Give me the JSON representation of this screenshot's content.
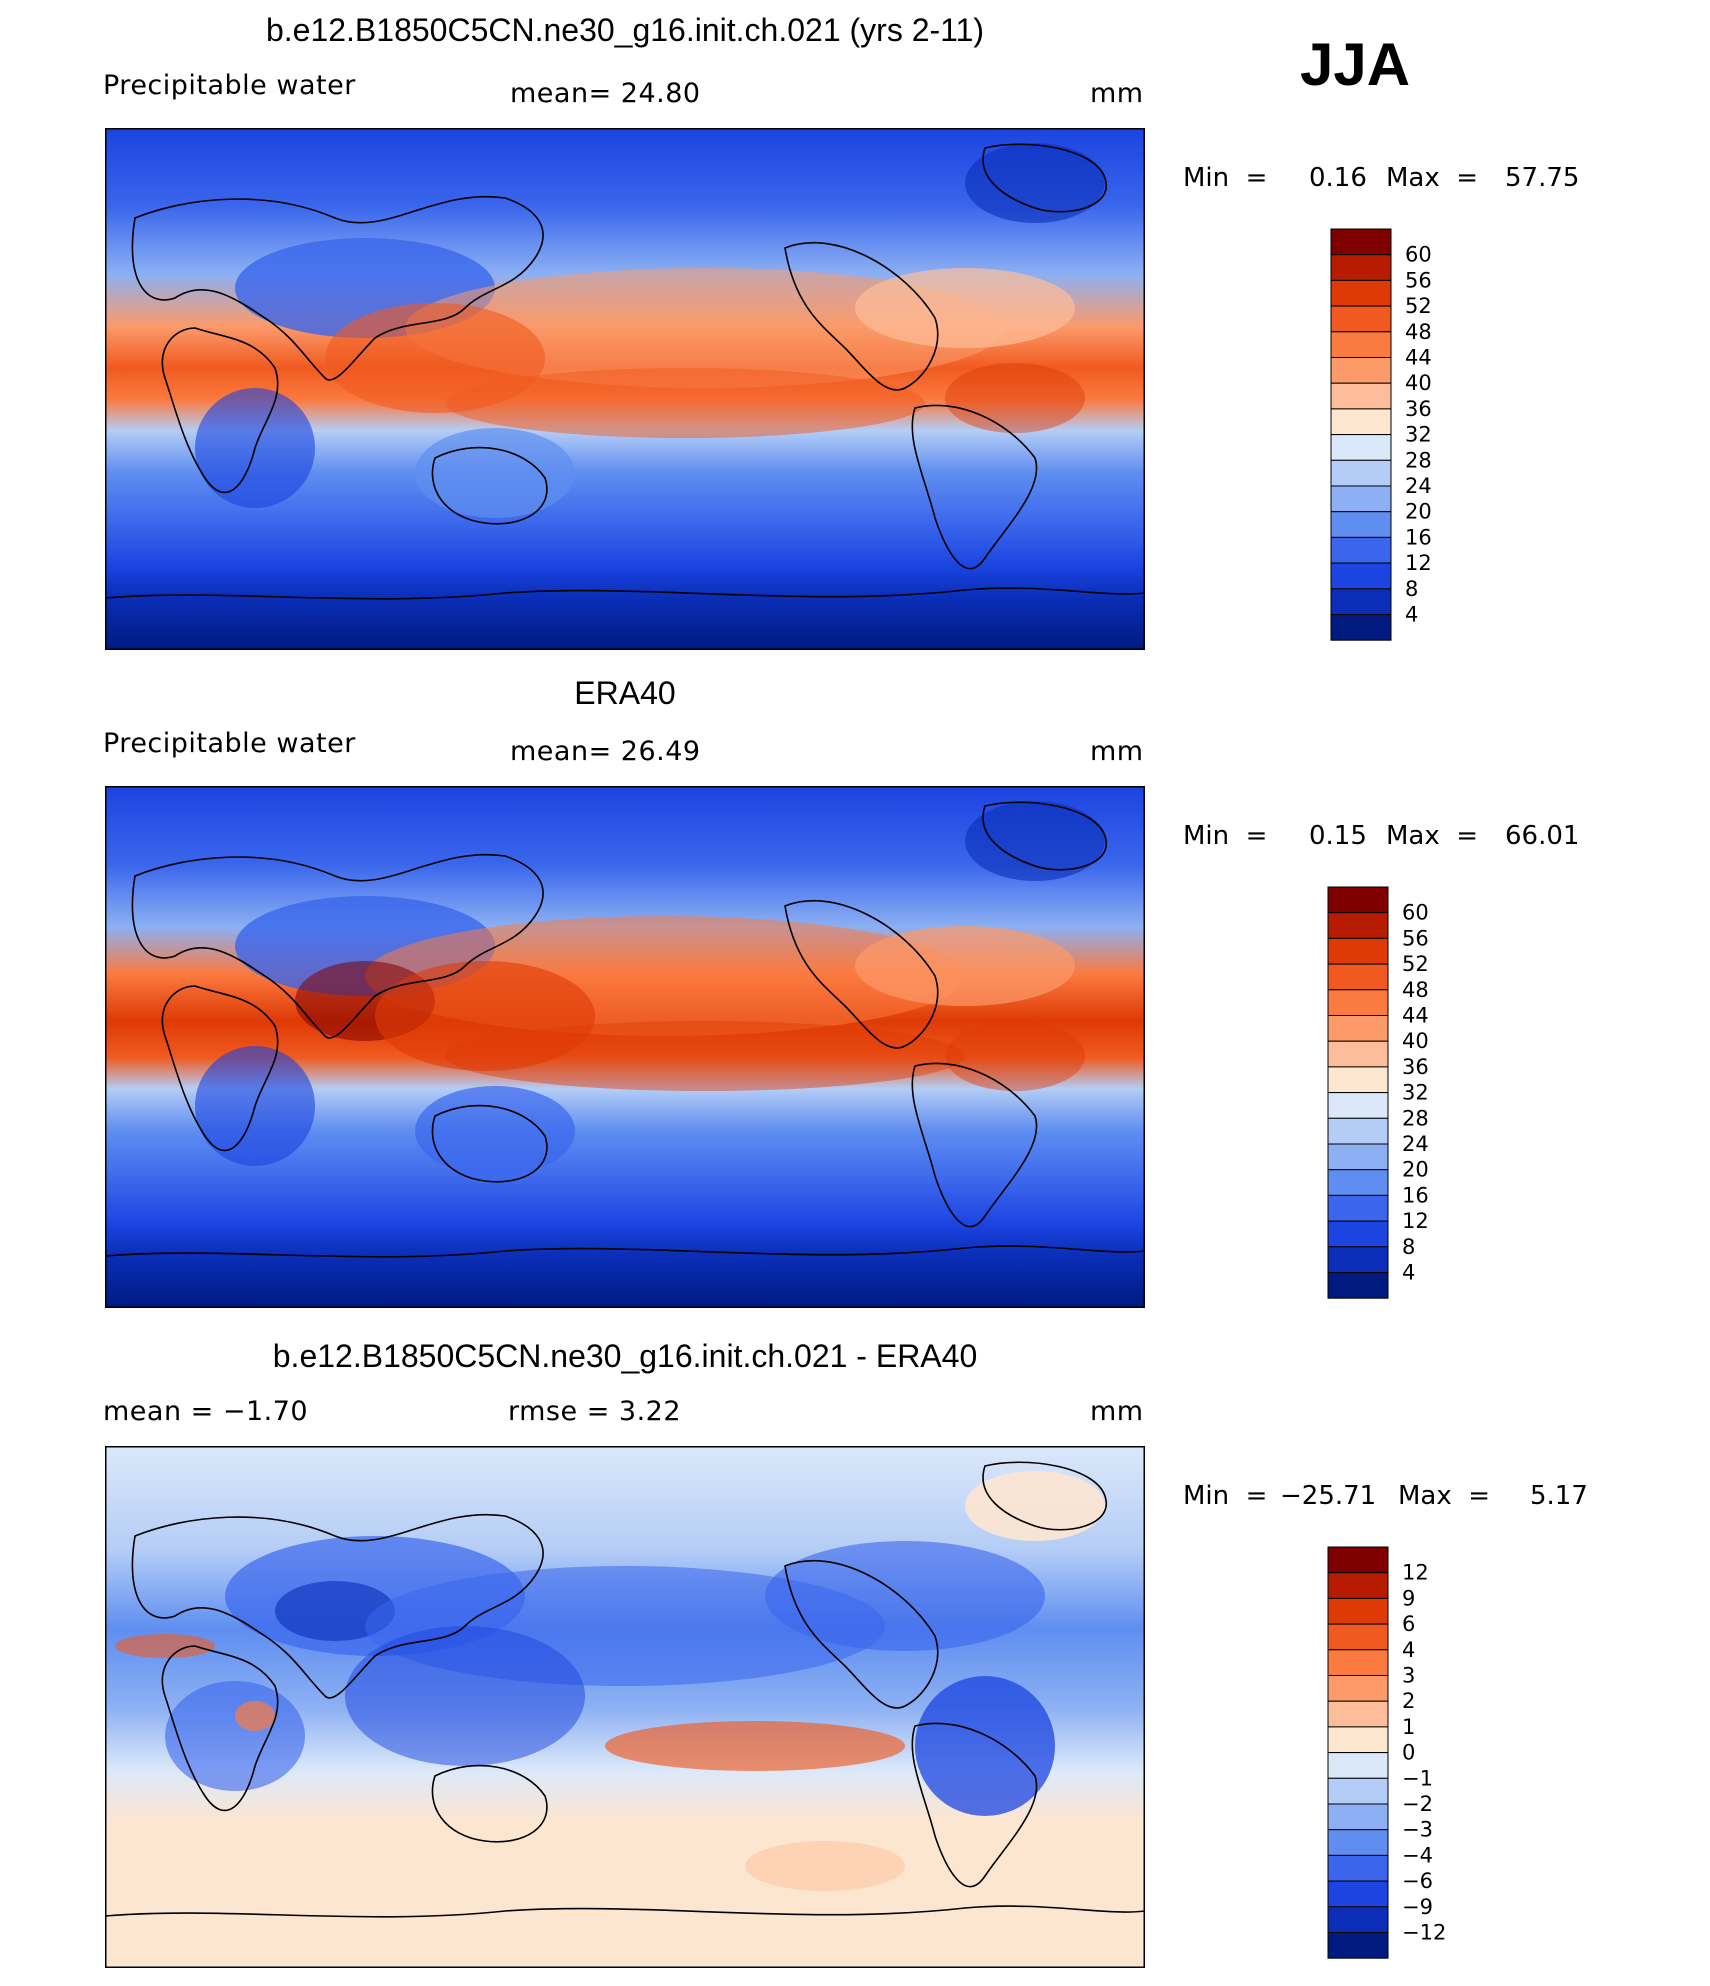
{
  "season": "JJA",
  "panels": [
    {
      "title": "b.e12.B1850C5CN.ne30_g16.init.ch.021 (yrs 2-11)",
      "left_label": "Precipitable  water",
      "center_label": "mean=   24.80",
      "units": "mm",
      "min_label": "Min  =",
      "min_value": "0.16",
      "max_label": "Max  =",
      "max_value": "57.75",
      "colorbar": {
        "labels": [
          "60",
          "56",
          "52",
          "48",
          "44",
          "40",
          "36",
          "32",
          "28",
          "24",
          "20",
          "16",
          "12",
          "8",
          "4"
        ],
        "colors": [
          "#800000",
          "#b81c00",
          "#de3a06",
          "#f05a20",
          "#fb7a40",
          "#fc9a6a",
          "#fdbd9a",
          "#fde6d0",
          "#dbe8fa",
          "#b4cdf6",
          "#8cb0f3",
          "#5f8ef0",
          "#3a66ec",
          "#1b44e0",
          "#0a2eb8",
          "#001a80"
        ]
      }
    },
    {
      "title": "ERA40",
      "left_label": "Precipitable  water",
      "center_label": "mean=   26.49",
      "units": "mm",
      "min_label": "Min  =",
      "min_value": "0.15",
      "max_label": "Max  =",
      "max_value": "66.01",
      "colorbar": {
        "labels": [
          "60",
          "56",
          "52",
          "48",
          "44",
          "40",
          "36",
          "32",
          "28",
          "24",
          "20",
          "16",
          "12",
          "8",
          "4"
        ],
        "colors": [
          "#800000",
          "#b81c00",
          "#de3a06",
          "#f05a20",
          "#fb7a40",
          "#fc9a6a",
          "#fdbd9a",
          "#fde6d0",
          "#dbe8fa",
          "#b4cdf6",
          "#8cb0f3",
          "#5f8ef0",
          "#3a66ec",
          "#1b44e0",
          "#0a2eb8",
          "#001a80"
        ]
      }
    },
    {
      "title": "b.e12.B1850C5CN.ne30_g16.init.ch.021 - ERA40",
      "left_label": "mean  =    −1.70",
      "center_label": "rmse  =     3.22",
      "units": "mm",
      "min_label": "Min  =",
      "min_value": "−25.71",
      "max_label": "Max  =",
      "max_value": "5.17",
      "colorbar": {
        "labels": [
          "12",
          "9",
          "6",
          "4",
          "3",
          "2",
          "1",
          "0",
          "−1",
          "−2",
          "−3",
          "−4",
          "−6",
          "−9",
          "−12"
        ],
        "colors": [
          "#800000",
          "#b81c00",
          "#de3a06",
          "#f05a20",
          "#fb7a40",
          "#fc9a6a",
          "#fdbd9a",
          "#fde6d0",
          "#dbe8fa",
          "#b4cdf6",
          "#8cb0f3",
          "#5f8ef0",
          "#3a66ec",
          "#1b44e0",
          "#0a2eb8",
          "#001a80"
        ]
      }
    }
  ]
}
